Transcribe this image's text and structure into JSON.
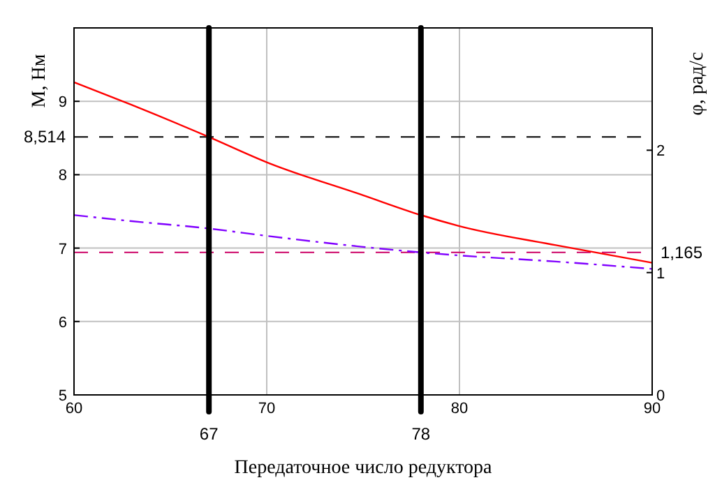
{
  "chart_data": {
    "type": "line",
    "xlabel": "Передаточное число редуктора",
    "ylabel": "M, Нм",
    "y2label": "φ, рад/с",
    "x": [
      60,
      63,
      67,
      70,
      75,
      78,
      80,
      85,
      90
    ],
    "series": [
      {
        "color": "#ff0000",
        "values": [
          9.26,
          8.95,
          8.514,
          8.17,
          7.72,
          7.45,
          7.3,
          7.04,
          6.8
        ],
        "line_style": "solid"
      },
      {
        "color": "#8000ff",
        "axis": "y2",
        "values": [
          1.47,
          1.42,
          1.36,
          1.3,
          1.21,
          1.165,
          1.14,
          1.09,
          1.03
        ],
        "line_style": "dashdot"
      }
    ],
    "xlim": [
      60,
      90
    ],
    "xticks": [
      60,
      70,
      80,
      90
    ],
    "ylim": [
      5,
      10
    ],
    "yticks": [
      5,
      6,
      7,
      8,
      9
    ],
    "y2lim": [
      0,
      3
    ],
    "y2ticks": [
      0,
      1,
      2
    ],
    "grid": true,
    "marker": "none",
    "ref_lines": [
      {
        "axis": "y",
        "value": 8.514,
        "label": "8,514",
        "color": "#000000",
        "line_style": "dashed"
      },
      {
        "axis": "y2",
        "value": 1.165,
        "label": "1,165",
        "color": "#cc0066",
        "line_style": "dashed"
      },
      {
        "axis": "x",
        "value": 67,
        "label": "67",
        "color": "#000000",
        "line_style": "solid"
      },
      {
        "axis": "x",
        "value": 78,
        "label": "78",
        "color": "#000000",
        "line_style": "solid"
      }
    ]
  }
}
